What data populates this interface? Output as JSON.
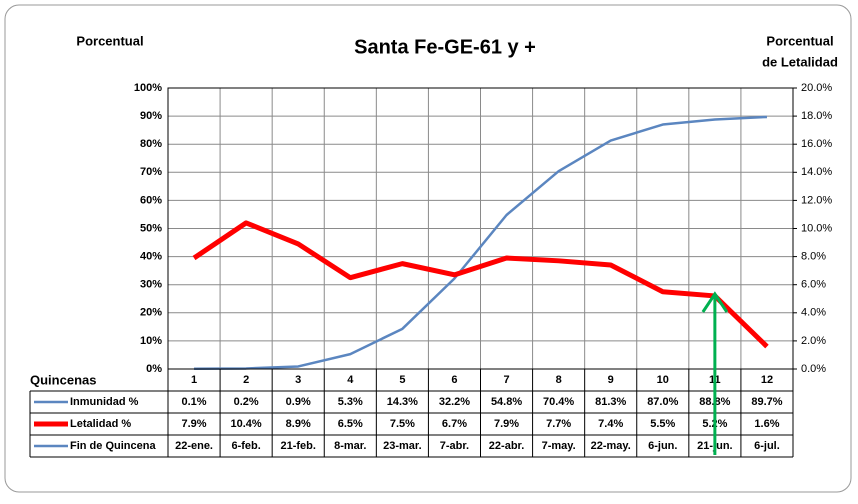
{
  "chart_data": {
    "type": "line",
    "title": "Santa Fe-GE-61 y +",
    "y_label": "Porcentual",
    "y2_label": [
      "Porcentual",
      "de Letalidad"
    ],
    "x_label": "Quincenas",
    "categories": [
      "1",
      "2",
      "3",
      "4",
      "5",
      "6",
      "7",
      "8",
      "9",
      "10",
      "11",
      "12"
    ],
    "ylim": [
      0,
      100
    ],
    "yticks": [
      {
        "value": 0,
        "label": "0%"
      },
      {
        "value": 10,
        "label": "10%"
      },
      {
        "value": 20,
        "label": "20%"
      },
      {
        "value": 30,
        "label": "30%"
      },
      {
        "value": 40,
        "label": "40%"
      },
      {
        "value": 50,
        "label": "50%"
      },
      {
        "value": 60,
        "label": "60%"
      },
      {
        "value": 70,
        "label": "70%"
      },
      {
        "value": 80,
        "label": "80%"
      },
      {
        "value": 90,
        "label": "90%"
      },
      {
        "value": 100,
        "label": "100%"
      }
    ],
    "y2lim": [
      0,
      20
    ],
    "y2ticks": [
      {
        "value": 0,
        "label": "0.0%"
      },
      {
        "value": 2,
        "label": "2.0%"
      },
      {
        "value": 4,
        "label": "4.0%"
      },
      {
        "value": 6,
        "label": "6.0%"
      },
      {
        "value": 8,
        "label": "8.0%"
      },
      {
        "value": 10,
        "label": "10.0%"
      },
      {
        "value": 12,
        "label": "12.0%"
      },
      {
        "value": 14,
        "label": "14.0%"
      },
      {
        "value": 16,
        "label": "16.0%"
      },
      {
        "value": 18,
        "label": "18.0%"
      },
      {
        "value": 20,
        "label": "20.0%"
      }
    ],
    "grid": true,
    "series": [
      {
        "name": "Inmunidad  %",
        "color": "#5b86c0",
        "width": 2.5,
        "values": [
          0.1,
          0.2,
          0.9,
          5.3,
          14.3,
          32.2,
          54.8,
          70.4,
          81.3,
          87.0,
          88.8,
          89.7
        ],
        "value_labels": [
          "0.1%",
          "0.2%",
          "0.9%",
          "5.3%",
          "14.3%",
          "32.2%",
          "54.8%",
          "70.4%",
          "81.3%",
          "87.0%",
          "88.8%",
          "89.7%"
        ]
      },
      {
        "name": "Letalidad %",
        "color": "#ff0000",
        "width": 5,
        "axis": "y2",
        "values": [
          7.9,
          10.4,
          8.9,
          6.5,
          7.5,
          6.7,
          7.9,
          7.7,
          7.4,
          5.5,
          5.2,
          1.6
        ],
        "value_labels": [
          "7.9%",
          "10.4%",
          "8.9%",
          "6.5%",
          "7.5%",
          "6.7%",
          "7.9%",
          "7.7%",
          "7.4%",
          "5.5%",
          "5.2%",
          "1.6%"
        ]
      }
    ],
    "date_row": {
      "name": "Fin de Quincena",
      "color": "#5b86c0",
      "values": [
        "22-ene.",
        "6-feb.",
        "21-feb.",
        "8-mar.",
        "23-mar.",
        "7-abr.",
        "22-abr.",
        "7-may.",
        "22-may.",
        "6-jun.",
        "21-jun.",
        "6-jul."
      ]
    }
  }
}
